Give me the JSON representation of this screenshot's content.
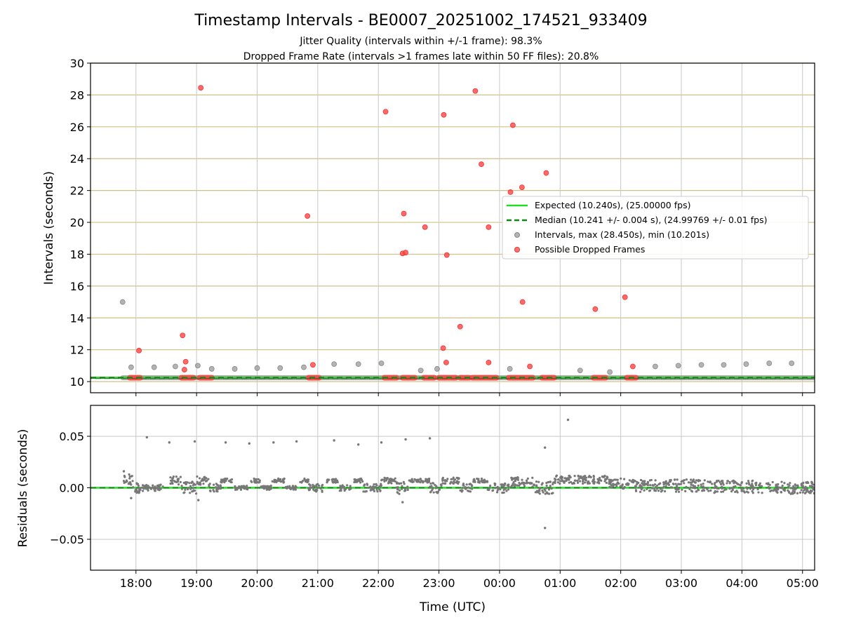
{
  "chart_data": [
    {
      "type": "scatter",
      "title": "Timestamp Intervals - BE0007_20251002_174521_933409",
      "subtitle_lines": [
        "Jitter Quality (intervals within +/-1 frame): 98.3%",
        "Dropped Frame Rate (intervals >1 frames late within 50 FF files): 20.8%"
      ],
      "xlabel": "",
      "ylabel": "Intervals (seconds)",
      "xlim_hours": [
        17.25,
        29.2
      ],
      "ylim": [
        9.3,
        30
      ],
      "yticks": [
        10,
        12,
        14,
        16,
        18,
        20,
        22,
        24,
        26,
        28,
        30
      ],
      "grid": true,
      "legend_position": "center-right",
      "legend": [
        {
          "label": "Expected (10.240s), (25.00000 fps)",
          "style": "line",
          "color": "#22dd22"
        },
        {
          "label": "Median (10.241 +/- 0.004 s), (24.99769 +/- 0.01 fps)",
          "style": "dashed",
          "color": "#118811"
        },
        {
          "label": "Intervals, max (28.450s), min (10.201s)",
          "style": "marker",
          "color": "#999999"
        },
        {
          "label": "Possible Dropped Frames",
          "style": "marker",
          "color": "#ff4444"
        }
      ],
      "expected_value": 10.24,
      "median_value": 10.241,
      "series": [
        {
          "name": "Intervals, max (28.450s), min (10.201s)",
          "color": "#999999",
          "points": [
            [
              17.78,
              15.0
            ],
            [
              17.92,
              10.9
            ],
            [
              18.3,
              10.9
            ],
            [
              18.65,
              10.95
            ],
            [
              19.02,
              11.0
            ],
            [
              19.25,
              10.8
            ],
            [
              19.63,
              10.8
            ],
            [
              20.0,
              10.85
            ],
            [
              20.38,
              10.85
            ],
            [
              20.77,
              10.9
            ],
            [
              21.27,
              11.1
            ],
            [
              21.67,
              11.1
            ],
            [
              22.05,
              11.15
            ],
            [
              22.7,
              10.7
            ],
            [
              22.97,
              10.8
            ],
            [
              24.17,
              10.8
            ],
            [
              25.33,
              10.7
            ],
            [
              25.82,
              10.6
            ],
            [
              26.57,
              10.95
            ],
            [
              26.95,
              11.0
            ],
            [
              27.33,
              11.05
            ],
            [
              27.7,
              11.05
            ],
            [
              28.07,
              11.1
            ],
            [
              28.45,
              11.15
            ],
            [
              28.82,
              11.15
            ]
          ],
          "baseline_segments": [
            [
              17.78,
              29.2
            ]
          ],
          "baseline_value": 10.24
        },
        {
          "name": "Possible Dropped Frames",
          "color": "#ff4444",
          "points": [
            [
              18.05,
              11.95
            ],
            [
              18.77,
              12.9
            ],
            [
              18.82,
              11.25
            ],
            [
              18.8,
              10.75
            ],
            [
              19.07,
              28.45
            ],
            [
              20.83,
              20.4
            ],
            [
              20.92,
              11.05
            ],
            [
              22.12,
              26.95
            ],
            [
              22.4,
              18.05
            ],
            [
              22.45,
              18.1
            ],
            [
              22.42,
              20.55
            ],
            [
              22.77,
              19.7
            ],
            [
              23.07,
              12.1
            ],
            [
              23.08,
              26.75
            ],
            [
              23.12,
              11.2
            ],
            [
              23.13,
              17.95
            ],
            [
              23.35,
              13.45
            ],
            [
              23.6,
              28.25
            ],
            [
              23.7,
              23.65
            ],
            [
              23.82,
              19.7
            ],
            [
              23.82,
              11.2
            ],
            [
              24.18,
              21.9
            ],
            [
              24.22,
              26.1
            ],
            [
              24.37,
              22.2
            ],
            [
              24.38,
              15.0
            ],
            [
              24.5,
              10.95
            ],
            [
              24.77,
              23.1
            ],
            [
              25.58,
              14.55
            ],
            [
              26.07,
              15.3
            ],
            [
              26.2,
              10.95
            ]
          ],
          "baseline_clusters": [
            [
              17.9,
              17.98
            ],
            [
              18.02,
              18.07
            ],
            [
              18.75,
              18.95
            ],
            [
              19.05,
              19.25
            ],
            [
              20.85,
              21.02
            ],
            [
              22.1,
              22.3
            ],
            [
              22.4,
              22.6
            ],
            [
              22.75,
              22.92
            ],
            [
              23.0,
              23.28
            ],
            [
              23.35,
              23.5
            ],
            [
              23.55,
              23.95
            ],
            [
              24.15,
              24.55
            ],
            [
              24.7,
              24.9
            ],
            [
              25.55,
              25.75
            ],
            [
              26.1,
              26.25
            ]
          ],
          "baseline_value": 10.24
        }
      ]
    },
    {
      "type": "scatter",
      "xlabel": "Time (UTC)",
      "ylabel": "Residuals (seconds)",
      "xlim_hours": [
        17.25,
        29.2
      ],
      "ylim": [
        -0.08,
        0.08
      ],
      "yticks": [
        -0.05,
        0.0,
        0.05
      ],
      "ytick_labels": [
        "−0.05",
        "0.00",
        "0.05"
      ],
      "xticks_hours": [
        18,
        19,
        20,
        21,
        22,
        23,
        24,
        25,
        26,
        27,
        28,
        29
      ],
      "xtick_labels": [
        "18:00",
        "19:00",
        "20:00",
        "21:00",
        "22:00",
        "23:00",
        "00:00",
        "01:00",
        "02:00",
        "03:00",
        "04:00",
        "05:00"
      ],
      "grid": true,
      "zero_line_color": "#22dd22",
      "median_line_color": "#118811",
      "series_color": "#777777",
      "outliers": [
        [
          17.8,
          0.016
        ],
        [
          18.18,
          0.049
        ],
        [
          18.55,
          0.044
        ],
        [
          18.97,
          0.045
        ],
        [
          19.48,
          0.044
        ],
        [
          19.87,
          0.043
        ],
        [
          20.27,
          0.044
        ],
        [
          20.65,
          0.045
        ],
        [
          21.27,
          0.046
        ],
        [
          21.67,
          0.042
        ],
        [
          22.05,
          0.044
        ],
        [
          22.45,
          0.047
        ],
        [
          22.85,
          0.048
        ],
        [
          24.75,
          0.039
        ],
        [
          25.13,
          0.066
        ],
        [
          24.75,
          -0.039
        ],
        [
          17.92,
          -0.01
        ],
        [
          19.03,
          -0.012
        ],
        [
          22.4,
          -0.014
        ]
      ],
      "dense_segments": [
        [
          17.78,
          17.95,
          0.007,
          0.006
        ],
        [
          17.95,
          18.1,
          0.0,
          0.005
        ],
        [
          18.1,
          18.25,
          -0.001,
          0.004
        ],
        [
          18.25,
          18.45,
          0.0,
          0.003
        ],
        [
          18.55,
          18.75,
          0.007,
          0.004
        ],
        [
          18.75,
          19.0,
          0.0,
          0.006
        ],
        [
          19.0,
          19.2,
          0.007,
          0.004
        ],
        [
          19.2,
          19.4,
          0.0,
          0.004
        ],
        [
          19.4,
          19.6,
          0.007,
          0.002
        ],
        [
          19.6,
          19.85,
          0.0,
          0.002
        ],
        [
          19.9,
          20.05,
          0.007,
          0.002
        ],
        [
          20.05,
          20.25,
          0.0,
          0.002
        ],
        [
          20.25,
          20.45,
          0.007,
          0.002
        ],
        [
          20.45,
          20.65,
          0.0,
          0.002
        ],
        [
          20.7,
          20.85,
          0.007,
          0.002
        ],
        [
          20.85,
          21.1,
          0.0,
          0.004
        ],
        [
          21.15,
          21.35,
          0.007,
          0.002
        ],
        [
          21.35,
          21.55,
          0.0,
          0.003
        ],
        [
          21.6,
          21.75,
          0.007,
          0.002
        ],
        [
          21.75,
          22.05,
          0.0,
          0.004
        ],
        [
          22.05,
          22.3,
          0.007,
          0.003
        ],
        [
          22.3,
          22.5,
          0.0,
          0.006
        ],
        [
          22.5,
          22.85,
          0.007,
          0.002
        ],
        [
          22.85,
          23.05,
          0.0,
          0.005
        ],
        [
          23.05,
          23.35,
          0.007,
          0.003
        ],
        [
          23.35,
          23.55,
          0.0,
          0.004
        ],
        [
          23.55,
          23.8,
          0.007,
          0.002
        ],
        [
          23.8,
          24.15,
          0.0,
          0.005
        ],
        [
          24.15,
          24.55,
          0.006,
          0.005
        ],
        [
          24.55,
          24.9,
          0.0,
          0.006
        ],
        [
          24.9,
          25.8,
          0.008,
          0.004
        ],
        [
          25.8,
          26.25,
          0.004,
          0.005
        ],
        [
          26.25,
          27.5,
          0.002,
          0.006
        ],
        [
          27.5,
          28.2,
          0.001,
          0.006
        ],
        [
          28.2,
          29.2,
          0.0,
          0.006
        ]
      ]
    }
  ]
}
